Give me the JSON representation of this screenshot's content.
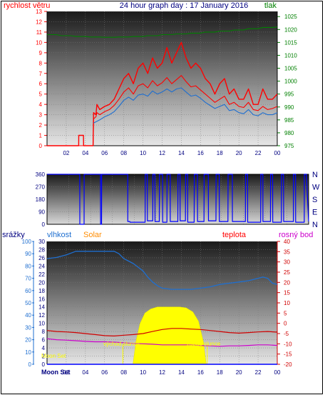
{
  "header": {
    "title": "24 hour graph day : 17 January 2016",
    "left_label": "rychlost větru",
    "right_label": "tlak"
  },
  "colors": {
    "wind": "#ff0000",
    "gust": "#ff0000",
    "avg": "#1f6fd0",
    "pressure": "#008000",
    "direction": "#0000ff",
    "humidity": "#1f6fd0",
    "temperature": "#d00000",
    "dewpoint": "#cc00cc",
    "solar": "#ffff00",
    "rain": "#0000ff",
    "title": "#000080",
    "label_temp": "#ff0000",
    "label_solar": "#ff8c00",
    "label_dew": "#cc00cc",
    "label_rain": "#000080",
    "label_hum": "#1f6fd0"
  },
  "chart_data": [
    {
      "type": "line",
      "id": "wind-pressure",
      "x_ticks": [
        "02",
        "04",
        "06",
        "08",
        "10",
        "12",
        "14",
        "16",
        "18",
        "20",
        "22",
        "00"
      ],
      "left_axis": {
        "ylim": [
          0,
          13
        ],
        "ticks": [
          0,
          1,
          2,
          3,
          4,
          5,
          6,
          7,
          8,
          9,
          10,
          11,
          12,
          13
        ]
      },
      "right_axis": {
        "ylim": [
          975,
          1027
        ],
        "ticks": [
          975,
          980,
          985,
          990,
          995,
          1000,
          1005,
          1010,
          1015,
          1020,
          1025
        ]
      },
      "series": [
        {
          "role": "gust",
          "axis": "left",
          "x": [
            0,
            3.3,
            3.31,
            3.8,
            3.81,
            4.0,
            4.1,
            4.8,
            4.85,
            5.1,
            5.2,
            5.5,
            6.0,
            6.5,
            7.0,
            7.5,
            8.0,
            8.5,
            9.0,
            9.5,
            10.0,
            10.5,
            11.0,
            11.5,
            12.0,
            12.5,
            13.0,
            13.5,
            14.0,
            14.5,
            15.0,
            15.5,
            16.0,
            16.5,
            17.0,
            17.5,
            18.0,
            18.5,
            19.0,
            19.5,
            20.0,
            20.5,
            21.0,
            21.5,
            22.0,
            22.5,
            23.0,
            23.5,
            24.0
          ],
          "y": [
            0,
            0,
            1,
            1,
            0,
            0,
            0,
            0,
            3.2,
            3.0,
            4.0,
            3.5,
            3.8,
            4.0,
            4.5,
            5.5,
            6.5,
            7.0,
            6.0,
            7.5,
            8.0,
            7.0,
            8.5,
            7.5,
            8.0,
            9.5,
            8.0,
            9.0,
            10.0,
            8.5,
            7.5,
            8.0,
            7.5,
            6.5,
            6.0,
            5.0,
            6.0,
            6.5,
            5.0,
            5.5,
            4.5,
            4.5,
            5.5,
            4.0,
            4.0,
            5.5,
            4.5,
            4.5,
            5.0
          ]
        },
        {
          "role": "wind",
          "axis": "left",
          "x": [
            0,
            3.3,
            3.31,
            3.8,
            3.81,
            4.0,
            4.1,
            4.8,
            4.85,
            5.1,
            5.2,
            5.5,
            6.0,
            6.5,
            7.0,
            7.5,
            8.0,
            8.5,
            9.0,
            9.5,
            10.0,
            10.5,
            11.0,
            11.5,
            12.0,
            12.5,
            13.0,
            13.5,
            14.0,
            14.5,
            15.0,
            15.5,
            16.0,
            16.5,
            17.0,
            17.5,
            18.0,
            18.5,
            19.0,
            19.5,
            20.0,
            20.5,
            21.0,
            21.5,
            22.0,
            22.5,
            23.0,
            23.5,
            24.0
          ],
          "y": [
            0,
            0,
            0,
            0,
            0,
            0,
            0,
            0,
            2.6,
            2.8,
            3.2,
            3.0,
            3.3,
            3.5,
            3.9,
            4.5,
            5.2,
            5.6,
            5.0,
            5.8,
            6.0,
            5.6,
            6.3,
            5.8,
            6.1,
            6.6,
            6.0,
            6.4,
            6.8,
            6.2,
            5.7,
            5.8,
            5.4,
            5.0,
            4.6,
            4.2,
            4.5,
            4.8,
            4.0,
            4.2,
            3.8,
            3.7,
            4.2,
            3.5,
            3.4,
            3.8,
            3.5,
            3.6,
            3.8
          ]
        },
        {
          "role": "avg",
          "axis": "left",
          "x": [
            4.85,
            5.5,
            6.0,
            6.5,
            7.0,
            7.5,
            8.0,
            8.5,
            9.0,
            9.5,
            10.0,
            10.5,
            11.0,
            11.5,
            12.0,
            12.5,
            13.0,
            13.5,
            14.0,
            14.5,
            15.0,
            15.5,
            16.0,
            16.5,
            17.0,
            17.5,
            18.0,
            18.5,
            19.0,
            19.5,
            20.0,
            20.5,
            21.0,
            21.5,
            22.0,
            22.5,
            23.0,
            23.5,
            24.0
          ],
          "y": [
            2.2,
            2.5,
            2.8,
            3.0,
            3.3,
            3.8,
            4.4,
            4.7,
            4.4,
            4.9,
            5.0,
            4.8,
            5.3,
            5.0,
            5.2,
            5.5,
            5.2,
            5.5,
            5.6,
            5.2,
            4.8,
            4.9,
            4.6,
            4.2,
            3.9,
            3.6,
            3.8,
            4.0,
            3.4,
            3.5,
            3.2,
            3.1,
            3.5,
            3.0,
            2.9,
            3.2,
            3.0,
            3.0,
            3.2
          ]
        },
        {
          "role": "pressure",
          "axis": "right",
          "x": [
            0,
            1.0,
            1.5,
            2.5,
            3.0,
            4.0,
            4.5,
            5.5,
            6.0,
            7.0,
            7.5,
            8.5,
            9.0,
            10.0,
            10.5,
            11.5,
            12.0,
            13.0,
            13.5,
            14.5,
            15.0,
            16.0,
            16.5,
            17.5,
            18.0,
            19.0,
            19.5,
            20.5,
            21.0,
            22.0,
            22.5,
            23.5,
            24.0
          ],
          "y": [
            1018,
            1018,
            1017.6,
            1017.6,
            1017.3,
            1017.3,
            1017.1,
            1017.1,
            1017.0,
            1017.0,
            1017.1,
            1017.1,
            1017.3,
            1017.3,
            1017.6,
            1017.6,
            1018.0,
            1018.0,
            1018.3,
            1018.3,
            1018.6,
            1018.6,
            1019.0,
            1019.0,
            1019.4,
            1019.4,
            1019.8,
            1019.8,
            1020.3,
            1020.3,
            1020.8,
            1020.8,
            1021.0
          ]
        }
      ]
    },
    {
      "type": "line",
      "id": "wind-direction",
      "x_ticks": [],
      "left_axis": {
        "ylim": [
          0,
          360
        ],
        "ticks": [
          0,
          90,
          180,
          270,
          360
        ]
      },
      "right_labels": [
        "N",
        "W",
        "S",
        "E",
        "N"
      ],
      "series": [
        {
          "role": "direction",
          "x": [
            0,
            3.0,
            3.01,
            3.4,
            3.41,
            4.9,
            4.91,
            5.0,
            5.01,
            7.4,
            7.41,
            7.6,
            7.61,
            9.0,
            9.01,
            9.2,
            9.21,
            9.7,
            9.71,
            9.9,
            9.91,
            10.3,
            10.31,
            10.6,
            10.61,
            11.0,
            11.01,
            11.3,
            11.31,
            12.0,
            12.01,
            12.2,
            12.21,
            12.7,
            12.71,
            12.9,
            12.91,
            13.5,
            13.51,
            13.8,
            13.81,
            14.4,
            14.41,
            14.8,
            14.81,
            15.5,
            15.51,
            15.8,
            15.81,
            16.6,
            16.61,
            17.0,
            17.01,
            18.2,
            18.21,
            18.4,
            18.41,
            19.6,
            19.61,
            19.8,
            19.81,
            20.5,
            20.51,
            20.7,
            20.71,
            21.5,
            21.51,
            21.7,
            21.71,
            22.6,
            22.61,
            22.8,
            22.81,
            23.6,
            23.61,
            23.8,
            24.0
          ],
          "y": [
            360,
            360,
            0,
            0,
            360,
            360,
            0,
            0,
            360,
            360,
            20,
            20,
            15,
            15,
            360,
            360,
            25,
            25,
            360,
            360,
            20,
            20,
            360,
            360,
            15,
            15,
            360,
            360,
            20,
            20,
            360,
            360,
            25,
            25,
            360,
            360,
            15,
            15,
            360,
            360,
            20,
            20,
            360,
            360,
            25,
            25,
            360,
            360,
            20,
            20,
            360,
            360,
            20,
            20,
            360,
            360,
            15,
            15,
            360,
            360,
            20,
            20,
            360,
            360,
            15,
            15,
            360,
            360,
            20,
            20,
            360,
            360,
            15,
            15,
            360,
            360,
            20
          ]
        }
      ]
    },
    {
      "type": "line",
      "id": "humidity-temp-solar",
      "x_ticks": [
        "02",
        "04",
        "06",
        "08",
        "10",
        "12",
        "14",
        "16",
        "18",
        "20",
        "22",
        "00"
      ],
      "legend": {
        "rain": "srážky",
        "humidity": "vlhkost",
        "solar": "Solar",
        "temperature": "teplota",
        "dewpoint": "rosný bod"
      },
      "annotations": [
        "Moon Set",
        "východ slunce",
        "západ slunce",
        "Moon Set"
      ],
      "rain_axis": {
        "ylim": [
          0,
          100
        ],
        "ticks": [
          0,
          10,
          20,
          30,
          40,
          50,
          60,
          70,
          80,
          90,
          100
        ]
      },
      "humidity_axis": {
        "ylim": [
          0,
          30
        ],
        "ticks": [
          0,
          2,
          4,
          6,
          8,
          10,
          12,
          14,
          16,
          18,
          20,
          22,
          24,
          26,
          28,
          30
        ]
      },
      "temp_axis": {
        "ylim": [
          -20,
          40
        ],
        "ticks": [
          -20,
          -15,
          -10,
          -5,
          0,
          5,
          10,
          15,
          20,
          25,
          30,
          35,
          40
        ]
      },
      "series": [
        {
          "role": "humidity",
          "x": [
            0,
            1.0,
            2.0,
            3.0,
            4.0,
            5.0,
            6.0,
            7.0,
            7.5,
            8.0,
            8.5,
            9.0,
            9.5,
            10.0,
            10.5,
            11.0,
            11.5,
            12.0,
            13.0,
            14.0,
            15.0,
            16.0,
            17.0,
            18.0,
            19.0,
            20.0,
            21.0,
            22.0,
            22.5,
            23.0,
            23.5,
            24.0
          ],
          "y": [
            86,
            87,
            89,
            92,
            92,
            92,
            92,
            92,
            90,
            86,
            84,
            82,
            79,
            76,
            71,
            67,
            64,
            62,
            61,
            61,
            61,
            62,
            63,
            65,
            66,
            67,
            68,
            70,
            71,
            70,
            66,
            65
          ]
        },
        {
          "role": "temperature",
          "x": [
            0,
            1.0,
            2.0,
            3.0,
            4.0,
            5.0,
            6.0,
            7.0,
            8.0,
            9.0,
            10.0,
            11.0,
            12.0,
            13.0,
            14.0,
            15.0,
            16.0,
            17.0,
            18.0,
            19.0,
            20.0,
            21.0,
            22.0,
            23.0,
            24.0
          ],
          "y": [
            -3.5,
            -4.0,
            -4.2,
            -4.5,
            -5.0,
            -5.5,
            -6.0,
            -6.2,
            -5.8,
            -5.5,
            -5.0,
            -4.0,
            -3.0,
            -2.5,
            -2.5,
            -2.8,
            -3.0,
            -3.5,
            -4.0,
            -4.5,
            -4.8,
            -4.5,
            -4.2,
            -4.0,
            -4.3
          ]
        },
        {
          "role": "dewpoint",
          "x": [
            0,
            1.0,
            2.0,
            3.0,
            4.0,
            5.0,
            6.0,
            7.0,
            8.0,
            9.0,
            10.0,
            11.0,
            12.0,
            13.0,
            14.0,
            15.0,
            16.0,
            17.0,
            18.0,
            19.0,
            20.0,
            21.0,
            22.0,
            23.0,
            24.0
          ],
          "y": [
            -7.5,
            -8.0,
            -8.2,
            -8.5,
            -8.8,
            -9.0,
            -9.0,
            -9.2,
            -9.5,
            -9.8,
            -10.0,
            -10.2,
            -10.5,
            -10.5,
            -10.5,
            -10.5,
            -10.8,
            -11.0,
            -11.2,
            -11.0,
            -11.0,
            -10.8,
            -10.5,
            -10.5,
            -10.8
          ]
        },
        {
          "role": "solar",
          "x": [
            8.95,
            9.3,
            9.7,
            10.2,
            10.8,
            11.5,
            12.2,
            13.0,
            13.8,
            14.5,
            15.2,
            15.8,
            16.3,
            16.6
          ],
          "y": [
            0,
            6,
            10,
            12.5,
            13.5,
            14,
            14,
            14,
            14,
            13.8,
            12.8,
            10.5,
            5.5,
            0
          ]
        },
        {
          "role": "rain",
          "x": [
            0,
            24
          ],
          "y": [
            0,
            0
          ]
        }
      ]
    }
  ]
}
